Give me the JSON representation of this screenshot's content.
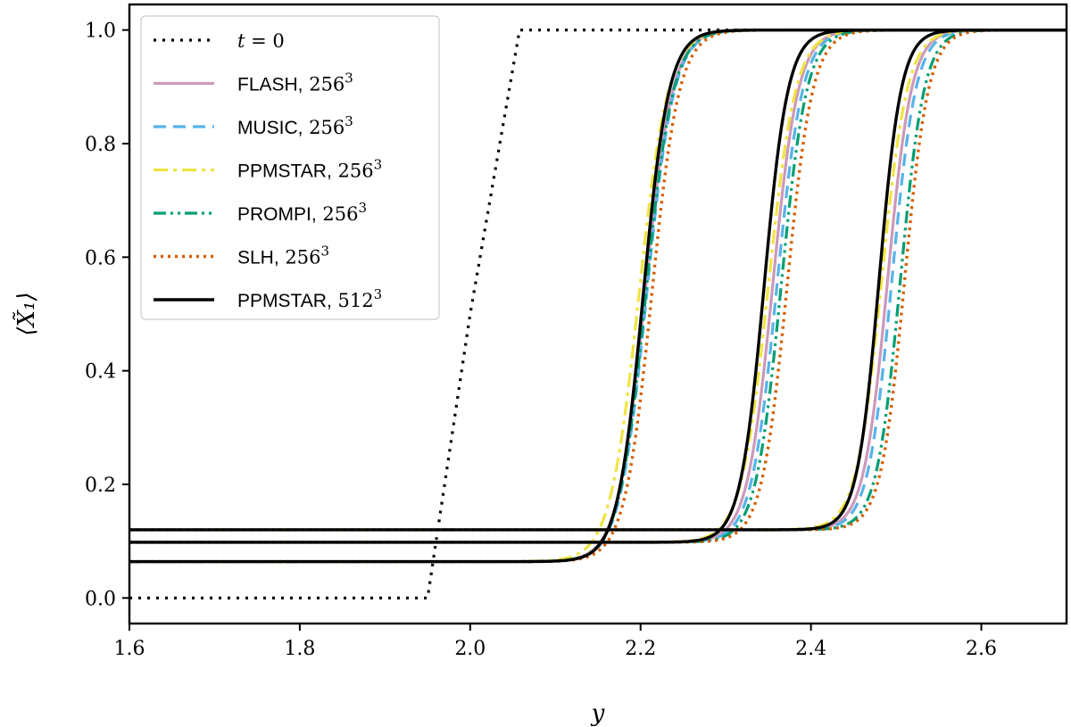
{
  "chart_data": {
    "type": "line",
    "xlabel": "y",
    "ylabel": "⟨X̃₁⟩",
    "xlim": [
      1.6,
      2.7
    ],
    "ylim": [
      -0.045,
      1.045
    ],
    "xticks": [
      "1.6",
      "1.8",
      "2.0",
      "2.2",
      "2.4",
      "2.6"
    ],
    "yticks": [
      "0.0",
      "0.2",
      "0.4",
      "0.6",
      "0.8",
      "1.0"
    ],
    "grid": false,
    "legend_position": "top-left",
    "series": [
      {
        "name": "t = 0",
        "label_main": "t",
        "label_tail": " = 0",
        "color": "#000000",
        "dash": "3,7",
        "width": 3.2,
        "points": [
          [
            1.6,
            0.0
          ],
          [
            1.95,
            0.0
          ],
          [
            2.0,
            0.5
          ],
          [
            2.058,
            1.0
          ],
          [
            2.7,
            1.0
          ]
        ]
      },
      {
        "name": "FLASH, 256³",
        "label_main": "FLASH,",
        "label_tail": " 256",
        "sup": "3",
        "color": "#cc99bb",
        "dash": "",
        "width": 3.2,
        "profiles": [
          {
            "base": 0.064,
            "center": 2.205,
            "slope": 0.016
          },
          {
            "base": 0.098,
            "center": 2.355,
            "slope": 0.015
          },
          {
            "base": 0.12,
            "center": 2.49,
            "slope": 0.014
          }
        ]
      },
      {
        "name": "MUSIC, 256³",
        "label_main": "MUSIC,",
        "label_tail": " 256",
        "sup": "3",
        "color": "#56b4e9",
        "dash": "14,8",
        "width": 3.2,
        "profiles": [
          {
            "base": 0.064,
            "center": 2.207,
            "slope": 0.016
          },
          {
            "base": 0.098,
            "center": 2.36,
            "slope": 0.015
          },
          {
            "base": 0.12,
            "center": 2.495,
            "slope": 0.014
          }
        ]
      },
      {
        "name": "PPMSTAR, 256³",
        "label_main": "PPMSTAR,",
        "label_tail": " 256",
        "sup": "3",
        "color": "#f0e442",
        "dash": "16,6,4,6",
        "width": 3.2,
        "profiles": [
          {
            "base": 0.064,
            "center": 2.198,
            "slope": 0.017
          },
          {
            "base": 0.098,
            "center": 2.35,
            "slope": 0.016
          },
          {
            "base": 0.12,
            "center": 2.483,
            "slope": 0.015
          }
        ]
      },
      {
        "name": "PROMPI, 256³",
        "label_main": "PROMPI,",
        "label_tail": " 256",
        "sup": "3",
        "color": "#009e73",
        "dash": "14,5,3,5,3,5",
        "width": 3.2,
        "profiles": [
          {
            "base": 0.064,
            "center": 2.206,
            "slope": 0.016
          },
          {
            "base": 0.098,
            "center": 2.365,
            "slope": 0.015
          },
          {
            "base": 0.12,
            "center": 2.505,
            "slope": 0.014
          }
        ]
      },
      {
        "name": "SLH, 256³",
        "label_main": "SLH,",
        "label_tail": " 256",
        "sup": "3",
        "color": "#d55e00",
        "dash": "3,5",
        "width": 3.4,
        "profiles": [
          {
            "base": 0.064,
            "center": 2.213,
            "slope": 0.016
          },
          {
            "base": 0.098,
            "center": 2.372,
            "slope": 0.015
          },
          {
            "base": 0.12,
            "center": 2.51,
            "slope": 0.014
          }
        ]
      },
      {
        "name": "PPMSTAR, 512³",
        "label_main": "PPMSTAR,",
        "label_tail": " 512",
        "sup": "3",
        "color": "#000000",
        "dash": "",
        "width": 3.4,
        "profiles": [
          {
            "base": 0.064,
            "center": 2.203,
            "slope": 0.015
          },
          {
            "base": 0.098,
            "center": 2.345,
            "slope": 0.014
          },
          {
            "base": 0.12,
            "center": 2.48,
            "slope": 0.013
          }
        ]
      }
    ]
  }
}
